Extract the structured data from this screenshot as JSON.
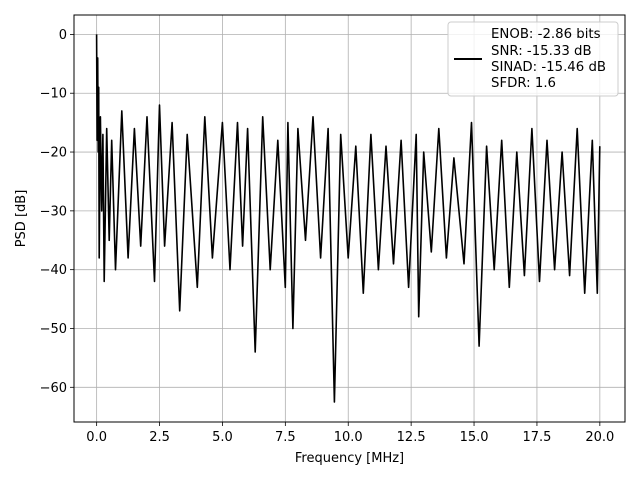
{
  "chart_data": {
    "type": "line",
    "title": "",
    "xlabel": "Frequency [MHz]",
    "ylabel": "PSD [dB]",
    "xlim": [
      -0.9,
      21.0
    ],
    "ylim": [
      -65.9,
      3.3
    ],
    "grid": true,
    "legend_position": "top-right",
    "x_ticks": [
      0.0,
      2.5,
      5.0,
      7.5,
      10.0,
      12.5,
      15.0,
      17.5,
      20.0
    ],
    "x_tick_labels": [
      "0.0",
      "2.5",
      "5.0",
      "7.5",
      "10.0",
      "12.5",
      "15.0",
      "17.5",
      "20.0"
    ],
    "y_ticks": [
      0,
      -10,
      -20,
      -30,
      -40,
      -50,
      -60
    ],
    "y_tick_labels": [
      "0",
      "−10",
      "−20",
      "−30",
      "−40",
      "−50",
      "−60"
    ],
    "series": [
      {
        "name": "ENOB: -2.86 bits\nSNR: -15.33 dB\nSINAD: -15.46 dB\nSFDR: 1.6",
        "color": "#000000",
        "x": [
          0.0,
          0.02,
          0.04,
          0.06,
          0.08,
          0.1,
          0.15,
          0.2,
          0.25,
          0.3,
          0.4,
          0.5,
          0.6,
          0.75,
          1.0,
          1.25,
          1.5,
          1.75,
          2.0,
          2.3,
          2.5,
          2.7,
          3.0,
          3.3,
          3.6,
          4.0,
          4.3,
          4.6,
          5.0,
          5.3,
          5.6,
          5.8,
          6.0,
          6.3,
          6.6,
          6.9,
          7.2,
          7.5,
          7.6,
          7.8,
          8.0,
          8.3,
          8.6,
          8.9,
          9.2,
          9.45,
          9.7,
          10.0,
          10.3,
          10.6,
          10.9,
          11.2,
          11.5,
          11.8,
          12.1,
          12.4,
          12.7,
          12.8,
          13.0,
          13.3,
          13.6,
          13.9,
          14.2,
          14.6,
          14.9,
          15.2,
          15.5,
          15.8,
          16.1,
          16.4,
          16.7,
          17.0,
          17.3,
          17.6,
          17.9,
          18.2,
          18.5,
          18.8,
          19.1,
          19.4,
          19.7,
          19.9,
          20.0
        ],
        "y": [
          0.0,
          -18.0,
          -4.0,
          -20.0,
          -9.0,
          -38.0,
          -14.0,
          -30.0,
          -17.0,
          -42.0,
          -16.0,
          -35.0,
          -18.0,
          -40.0,
          -13.0,
          -38.0,
          -16.0,
          -36.0,
          -14.0,
          -42.0,
          -12.0,
          -36.0,
          -15.0,
          -47.0,
          -17.0,
          -43.0,
          -14.0,
          -38.0,
          -15.0,
          -40.0,
          -15.0,
          -36.0,
          -16.0,
          -54.0,
          -14.0,
          -40.0,
          -18.0,
          -43.0,
          -15.0,
          -50.0,
          -16.0,
          -35.0,
          -14.0,
          -38.0,
          -16.0,
          -62.5,
          -17.0,
          -38.0,
          -19.0,
          -44.0,
          -17.0,
          -40.0,
          -19.0,
          -39.0,
          -18.0,
          -43.0,
          -17.0,
          -48.0,
          -20.0,
          -37.0,
          -16.0,
          -38.0,
          -21.0,
          -39.0,
          -15.0,
          -53.0,
          -19.0,
          -40.0,
          -18.0,
          -43.0,
          -20.0,
          -41.0,
          -16.0,
          -42.0,
          -18.0,
          -40.0,
          -20.0,
          -41.0,
          -16.0,
          -44.0,
          -18.0,
          -44.0,
          -19.0
        ]
      }
    ]
  },
  "legend": {
    "lines": [
      "ENOB: -2.86 bits",
      "SNR: -15.33 dB",
      "SINAD: -15.46 dB",
      "SFDR: 1.6"
    ]
  }
}
